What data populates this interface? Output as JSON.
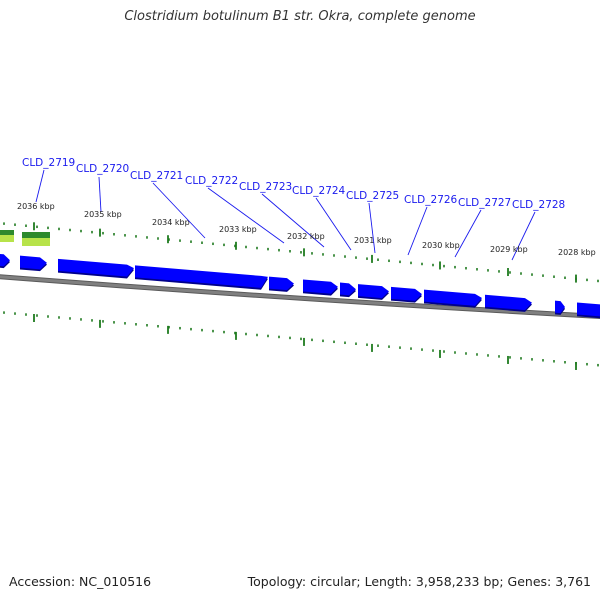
{
  "title": "Clostridium botulinum B1 str. Okra, complete genome",
  "footer": {
    "accession": "Accession: NC_010516",
    "summary": "Topology: circular; Length: 3,958,233 bp; Genes: 3,761"
  },
  "colors": {
    "gene": "#0000ff",
    "gene_shadow": "#00008b",
    "label": "#1a1aee",
    "tick": "#1e7a1e",
    "backbone": "#808080",
    "backbone_shadow": "#5a5a5a",
    "highlight_green": "#2d8a2d",
    "highlight_lime": "#b7e34a"
  },
  "ticks": [
    {
      "label": "2036 kbp"
    },
    {
      "label": "2035 kbp"
    },
    {
      "label": "2034 kbp"
    },
    {
      "label": "2033 kbp"
    },
    {
      "label": "2032 kbp"
    },
    {
      "label": "2031 kbp"
    },
    {
      "label": "2030 kbp"
    },
    {
      "label": "2029 kbp"
    },
    {
      "label": "2028 kbp"
    }
  ],
  "gene_labels": [
    {
      "label": "CLD_2719"
    },
    {
      "label": "CLD_2720"
    },
    {
      "label": "CLD_2721"
    },
    {
      "label": "CLD_2722"
    },
    {
      "label": "CLD_2723"
    },
    {
      "label": "CLD_2724"
    },
    {
      "label": "CLD_2725"
    },
    {
      "label": "CLD_2726"
    },
    {
      "label": "CLD_2727"
    },
    {
      "label": "CLD_2728"
    }
  ]
}
